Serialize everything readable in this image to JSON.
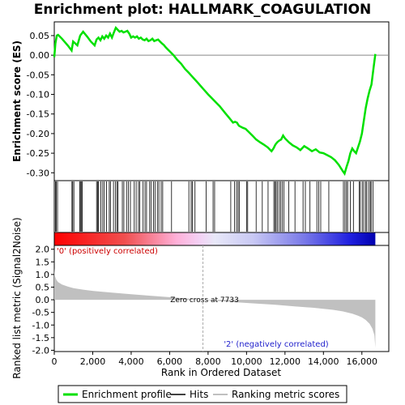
{
  "chart_data": {
    "type": "line",
    "title": "Enrichment plot: HALLMARK_COAGULATION",
    "xlabel": "Rank in Ordered Dataset",
    "top_panel": {
      "ylabel": "Enrichment score (ES)",
      "ylim": [
        -0.32,
        0.085
      ],
      "yticks": [
        -0.3,
        -0.25,
        -0.2,
        -0.15,
        -0.1,
        -0.05,
        0.0,
        0.05
      ],
      "ytick_labels": [
        "-0.30",
        "-0.25",
        "-0.20",
        "-0.15",
        "-0.10",
        "-0.05",
        "0.00",
        "0.05"
      ],
      "series": [
        {
          "name": "Enrichment profile",
          "color": "#00e000",
          "x": [
            0,
            60,
            130,
            200,
            400,
            700,
            900,
            980,
            1200,
            1350,
            1500,
            1700,
            1900,
            2100,
            2200,
            2300,
            2400,
            2500,
            2600,
            2700,
            2800,
            2900,
            3000,
            3100,
            3200,
            3300,
            3400,
            3500,
            3600,
            3700,
            3800,
            3900,
            4000,
            4100,
            4200,
            4300,
            4400,
            4500,
            4600,
            4700,
            4800,
            4900,
            5000,
            5100,
            5200,
            5300,
            5400,
            5500,
            5600,
            5700,
            5800,
            5900,
            6000,
            6200,
            6400,
            6600,
            6800,
            7000,
            7200,
            7500,
            7733,
            8000,
            8300,
            8600,
            8900,
            9100,
            9300,
            9400,
            9500,
            9600,
            9800,
            9950,
            10100,
            10300,
            10500,
            10700,
            10900,
            11100,
            11300,
            11400,
            11500,
            11600,
            11700,
            11800,
            11900,
            12000,
            12200,
            12400,
            12600,
            12800,
            13000,
            13200,
            13400,
            13600,
            13800,
            14000,
            14200,
            14400,
            14600,
            14800,
            15000,
            15100,
            15200,
            15300,
            15400,
            15500,
            15600,
            15700,
            15800,
            15900,
            16000,
            16100,
            16200,
            16300,
            16400,
            16500,
            16600,
            16700
          ],
          "y": [
            -0.005,
            0.03,
            0.05,
            0.052,
            0.042,
            0.025,
            0.012,
            0.035,
            0.025,
            0.05,
            0.06,
            0.048,
            0.035,
            0.025,
            0.04,
            0.045,
            0.038,
            0.048,
            0.042,
            0.05,
            0.045,
            0.055,
            0.045,
            0.058,
            0.07,
            0.065,
            0.06,
            0.062,
            0.058,
            0.06,
            0.062,
            0.055,
            0.045,
            0.048,
            0.045,
            0.048,
            0.042,
            0.045,
            0.04,
            0.038,
            0.042,
            0.036,
            0.038,
            0.042,
            0.036,
            0.038,
            0.04,
            0.035,
            0.03,
            0.026,
            0.02,
            0.015,
            0.01,
            0.0,
            -0.012,
            -0.022,
            -0.035,
            -0.045,
            -0.056,
            -0.072,
            -0.085,
            -0.1,
            -0.115,
            -0.13,
            -0.148,
            -0.16,
            -0.172,
            -0.17,
            -0.172,
            -0.18,
            -0.185,
            -0.188,
            -0.195,
            -0.205,
            -0.215,
            -0.222,
            -0.228,
            -0.235,
            -0.245,
            -0.238,
            -0.228,
            -0.222,
            -0.218,
            -0.215,
            -0.205,
            -0.212,
            -0.222,
            -0.23,
            -0.235,
            -0.242,
            -0.232,
            -0.238,
            -0.245,
            -0.24,
            -0.248,
            -0.25,
            -0.255,
            -0.26,
            -0.268,
            -0.28,
            -0.295,
            -0.302,
            -0.285,
            -0.27,
            -0.25,
            -0.238,
            -0.245,
            -0.25,
            -0.235,
            -0.22,
            -0.2,
            -0.168,
            -0.135,
            -0.11,
            -0.09,
            -0.075,
            -0.035,
            0.003
          ]
        }
      ]
    },
    "hits_panel": {
      "label": "Hits",
      "positions": [
        60,
        110,
        170,
        920,
        960,
        1020,
        1320,
        1360,
        1420,
        1460,
        2200,
        2260,
        2300,
        2420,
        2520,
        2600,
        2720,
        2860,
        2920,
        3080,
        3180,
        3260,
        3320,
        3540,
        3620,
        3760,
        3860,
        3960,
        4160,
        4260,
        4380,
        4440,
        4620,
        4720,
        4800,
        4960,
        5040,
        5160,
        5240,
        5360,
        5440,
        5560,
        5640,
        6100,
        7000,
        7120,
        7180,
        7320,
        7900,
        8260,
        8340,
        9180,
        9380,
        9480,
        9560,
        9620,
        10000,
        10060,
        10500,
        10820,
        11120,
        11420,
        11480,
        11540,
        11600,
        11700,
        11780,
        11860,
        11940,
        12200,
        12520,
        12940,
        13060,
        13300,
        13660,
        13760,
        13860,
        14280,
        15040,
        15120,
        15200,
        15260,
        15400,
        15560,
        15860,
        15920,
        16020,
        16100,
        16200,
        16260,
        16360,
        16440,
        16480,
        16580
      ]
    },
    "bottom_panel": {
      "ylabel": "Ranked list metric (Signal2Noise)",
      "ylim": [
        -2.05,
        2.15
      ],
      "yticks": [
        -2.0,
        -1.5,
        -1.0,
        -0.5,
        0.0,
        0.5,
        1.0,
        1.5,
        2.0
      ],
      "ytick_labels": [
        "-2.0",
        "-1.5",
        "-1.0",
        "-0.5",
        "0.0",
        "0.5",
        "1.0",
        "1.5",
        "2.0"
      ],
      "metric_x": [
        0,
        30,
        100,
        200,
        400,
        700,
        1000,
        1500,
        2000,
        3000,
        4000,
        5000,
        6000,
        7000,
        7733,
        8500,
        9500,
        10500,
        11500,
        12500,
        13500,
        14500,
        15000,
        15500,
        15800,
        16000,
        16200,
        16400,
        16550,
        16650,
        16700
      ],
      "metric_y": [
        1.25,
        0.95,
        0.8,
        0.7,
        0.6,
        0.52,
        0.46,
        0.4,
        0.35,
        0.28,
        0.22,
        0.16,
        0.1,
        0.04,
        0.0,
        -0.05,
        -0.1,
        -0.15,
        -0.2,
        -0.26,
        -0.32,
        -0.4,
        -0.46,
        -0.55,
        -0.63,
        -0.7,
        -0.8,
        -0.95,
        -1.15,
        -1.4,
        -1.9
      ],
      "zero_cross_label": "Zero cross at 7733",
      "zero_cross_rank": 7733,
      "pos_label": "'0' (positively correlated)",
      "neg_label": "'2' (negatively correlated)"
    },
    "x_range": [
      0,
      17400
    ],
    "xticks": [
      0,
      2000,
      4000,
      6000,
      8000,
      10000,
      12000,
      14000,
      16000
    ],
    "xtick_labels": [
      "0",
      "2,000",
      "4,000",
      "6,000",
      "8,000",
      "10,000",
      "12,000",
      "14,000",
      "16,000"
    ],
    "n_genes": 16700,
    "legend": {
      "placement": "bottom",
      "items": [
        {
          "label": "Enrichment profile",
          "color": "#00e000"
        },
        {
          "label": "Hits",
          "color": "#000000"
        },
        {
          "label": "Ranking metric scores",
          "color": "#c0c0c0"
        }
      ]
    }
  }
}
